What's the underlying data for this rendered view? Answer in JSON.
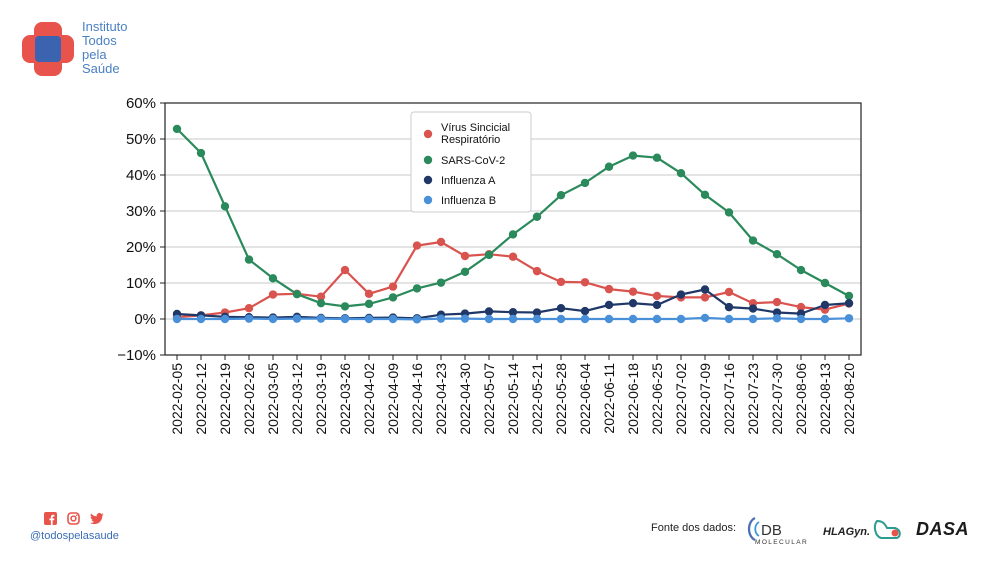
{
  "header": {
    "logo_icon": "cross-logo-icon",
    "org_name_lines": [
      "Instituto",
      "Todos",
      "pela",
      "Saúde"
    ]
  },
  "footer": {
    "social_icons": [
      "facebook-icon",
      "instagram-icon",
      "twitter-icon"
    ],
    "handle": "@todospelasaude",
    "source_label": "Fonte dos dados:",
    "partners": {
      "db_main": "DB",
      "db_sub": "MOLECULAR",
      "hla": "HLAGyn.",
      "dasa": "DASA"
    }
  },
  "colors": {
    "vsr": "#d9534f",
    "sars": "#2a8a5b",
    "flu_a": "#1f3868",
    "flu_b": "#4a90d9",
    "logo_red": "#e8544b",
    "logo_blue": "#3c63b0",
    "brand_text": "#4a80c4"
  },
  "chart_data": {
    "type": "line",
    "title": "",
    "xlabel": "",
    "ylabel": "",
    "x": [
      "2022-02-05",
      "2022-02-12",
      "2022-02-19",
      "2022-02-26",
      "2022-03-05",
      "2022-03-12",
      "2022-03-19",
      "2022-03-26",
      "2022-04-02",
      "2022-04-09",
      "2022-04-16",
      "2022-04-23",
      "2022-04-30",
      "2022-05-07",
      "2022-05-14",
      "2022-05-21",
      "2022-05-28",
      "2022-06-04",
      "2022-06-11",
      "2022-06-18",
      "2022-06-25",
      "2022-07-02",
      "2022-07-09",
      "2022-07-16",
      "2022-07-23",
      "2022-07-30",
      "2022-08-06",
      "2022-08-13",
      "2022-08-20"
    ],
    "yticks": [
      "60%",
      "50%",
      "40%",
      "30%",
      "20%",
      "10%",
      "0%",
      "−10%"
    ],
    "ylim": [
      -10,
      60
    ],
    "grid": "horizontal",
    "legend_position": "top-center",
    "series": [
      {
        "name": "Vírus Sincicial Respiratório",
        "color": "#d9534f",
        "values": [
          0.5,
          1.0,
          1.8,
          3.0,
          6.8,
          7.0,
          6.2,
          13.6,
          7.0,
          9.0,
          20.4,
          21.4,
          17.5,
          18.0,
          17.3,
          13.3,
          10.3,
          10.2,
          8.3,
          7.6,
          6.4,
          6.0,
          6.0,
          7.5,
          4.4,
          4.7,
          3.3,
          2.6,
          4.3
        ]
      },
      {
        "name": "SARS-CoV-2",
        "color": "#2a8a5b",
        "values": [
          52.8,
          46.1,
          31.3,
          16.5,
          11.3,
          6.9,
          4.4,
          3.5,
          4.2,
          6.0,
          8.5,
          10.1,
          13.1,
          17.8,
          23.5,
          28.4,
          34.4,
          37.8,
          42.3,
          45.4,
          44.8,
          40.5,
          34.5,
          29.6,
          21.8,
          18.0,
          13.6,
          10.0,
          6.4
        ]
      },
      {
        "name": "Influenza A",
        "color": "#1f3868",
        "values": [
          1.4,
          1.0,
          0.6,
          0.5,
          0.4,
          0.6,
          0.3,
          0.2,
          0.3,
          0.4,
          0.2,
          1.2,
          1.5,
          2.1,
          1.9,
          1.8,
          3.0,
          2.2,
          3.9,
          4.4,
          3.9,
          6.8,
          8.2,
          3.3,
          2.9,
          1.8,
          1.5,
          3.9,
          4.4
        ]
      },
      {
        "name": "Influenza B",
        "color": "#4a90d9",
        "values": [
          0.0,
          0.0,
          0.0,
          0.1,
          0.0,
          0.1,
          0.1,
          0.0,
          0.0,
          0.0,
          -0.1,
          0.1,
          0.1,
          0.0,
          0.0,
          0.0,
          0.0,
          0.0,
          0.0,
          0.0,
          0.0,
          0.0,
          0.3,
          0.0,
          0.0,
          0.2,
          0.0,
          0.0,
          0.2
        ]
      }
    ]
  }
}
